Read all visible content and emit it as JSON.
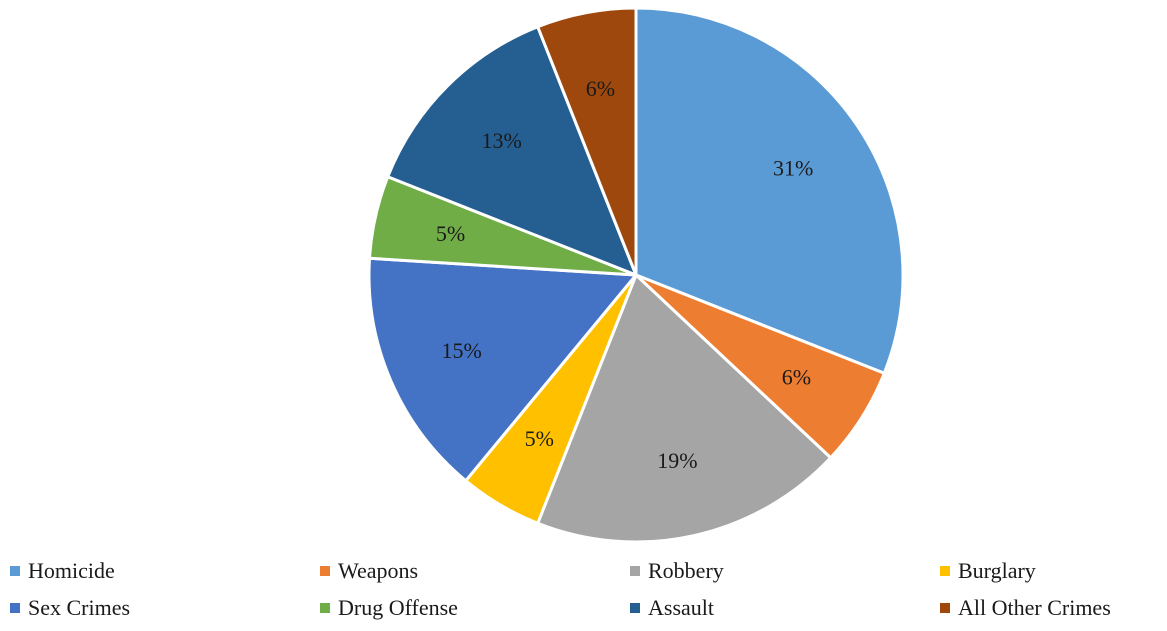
{
  "chart_data": {
    "type": "pie",
    "categories": [
      "Homicide",
      "Weapons",
      "Robbery",
      "Burglary",
      "Sex Crimes",
      "Drug Offense",
      "Assault",
      "All Other Crimes"
    ],
    "values": [
      31,
      6,
      19,
      5,
      15,
      5,
      13,
      6
    ],
    "labels": [
      "31%",
      "6%",
      "19%",
      "5%",
      "15%",
      "5%",
      "13%",
      "6%"
    ],
    "colors": [
      "#5B9BD5",
      "#ED7D31",
      "#A5A5A5",
      "#FFC000",
      "#4472C4",
      "#70AD47",
      "#255E91",
      "#9E480E"
    ],
    "legend_position": "bottom",
    "start": "12 o'clock",
    "direction": "clockwise"
  }
}
